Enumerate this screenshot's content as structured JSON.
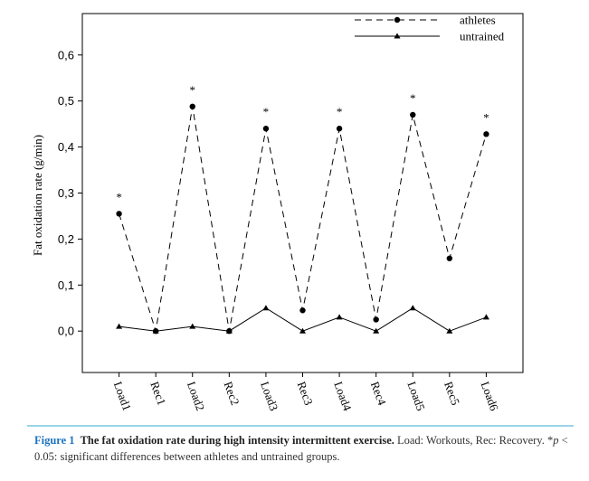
{
  "chart_data": {
    "type": "line",
    "y_label": "Fat oxidation rate (g/min)",
    "categories": [
      "Load1",
      "Rec1",
      "Load2",
      "Rec2",
      "Load3",
      "Rec3",
      "Load4",
      "Rec4",
      "Load5",
      "Rec5",
      "Load6"
    ],
    "series": [
      {
        "name": "athletes",
        "color": "#000000",
        "dash": true,
        "marker": "circle",
        "values": [
          0.255,
          0.0,
          0.488,
          0.0,
          0.44,
          0.045,
          0.44,
          0.025,
          0.47,
          0.158,
          0.428
        ]
      },
      {
        "name": "untrained",
        "color": "#000000",
        "dash": false,
        "marker": "triangle",
        "values": [
          0.01,
          0.0,
          0.01,
          0.0,
          0.05,
          0.0,
          0.03,
          0.0,
          0.05,
          0.0,
          0.03
        ]
      }
    ],
    "significance": [
      "*",
      null,
      "*",
      null,
      "*",
      null,
      "*",
      null,
      "*",
      null,
      "*"
    ],
    "ylim": [
      -0.09,
      0.69
    ],
    "yticks": [
      {
        "value": 0,
        "label": "0,0"
      },
      {
        "value": 0.1,
        "label": "0,1"
      },
      {
        "value": 0.2,
        "label": "0,2"
      },
      {
        "value": 0.3,
        "label": "0,3"
      },
      {
        "value": 0.4,
        "label": "0,4"
      },
      {
        "value": 0.5,
        "label": "0,5"
      },
      {
        "value": 0.6,
        "label": "0,6"
      }
    ],
    "legend": "upper right"
  },
  "caption": {
    "label": "Figure 1",
    "title": "The fat oxidation rate during high intensity intermittent exercise.",
    "text_before": "Load: Workouts, Rec: Recovery. *",
    "italic": "p",
    "text_after": " < 0.05: significant differences between athletes and untrained groups."
  }
}
